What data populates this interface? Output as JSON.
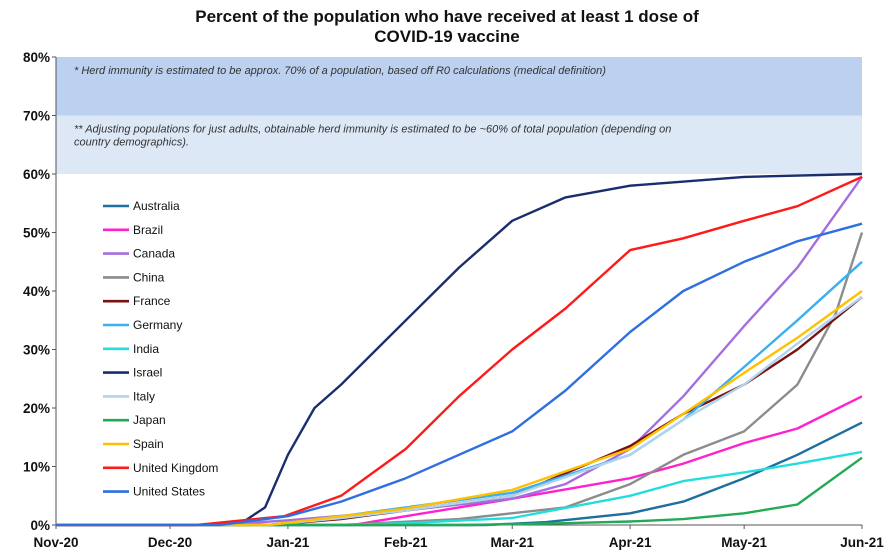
{
  "chart_data": {
    "type": "line",
    "title_lines": [
      "Percent of the population who have received at least 1 dose of",
      "COVID-19 vaccine"
    ],
    "x_ticks": [
      "Nov-20",
      "Dec-20",
      "Jan-21",
      "Feb-21",
      "Mar-21",
      "Apr-21",
      "May-21",
      "Jun-21"
    ],
    "y_ticks": [
      "0%",
      "10%",
      "20%",
      "30%",
      "40%",
      "50%",
      "60%",
      "70%",
      "80%"
    ],
    "ylim": [
      0,
      80
    ],
    "xlim": [
      "2020-11-01",
      "2021-06-01"
    ],
    "grid": false,
    "legend_position": "left",
    "bands": [
      {
        "from": 70,
        "to": 80,
        "color": "#bcd0ef",
        "note": "* Herd immunity is estimated to be approx. 70% of a population, based off R0 calculations (medical definition)"
      },
      {
        "from": 60,
        "to": 70,
        "color": "#dde8f7",
        "note": "** Adjusting populations for just adults, obtainable herd immunity is estimated to be ~60% of total population (depending on country demographics)."
      }
    ],
    "series": [
      {
        "name": "Australia",
        "color": "#1e6fa0",
        "points": [
          [
            "2021-02-22",
            0
          ],
          [
            "2021-03-10",
            0.5
          ],
          [
            "2021-04-01",
            2
          ],
          [
            "2021-04-15",
            4
          ],
          [
            "2021-05-01",
            8
          ],
          [
            "2021-05-15",
            12
          ],
          [
            "2021-06-01",
            17.5
          ]
        ]
      },
      {
        "name": "Brazil",
        "color": "#ff22cc",
        "points": [
          [
            "2021-01-18",
            0
          ],
          [
            "2021-02-01",
            1.5
          ],
          [
            "2021-03-01",
            4.5
          ],
          [
            "2021-04-01",
            8
          ],
          [
            "2021-04-15",
            10.5
          ],
          [
            "2021-05-01",
            14
          ],
          [
            "2021-05-15",
            16.5
          ],
          [
            "2021-06-01",
            22
          ]
        ]
      },
      {
        "name": "Canada",
        "color": "#a56ee0",
        "points": [
          [
            "2020-12-14",
            0
          ],
          [
            "2021-01-01",
            0.8
          ],
          [
            "2021-02-01",
            2.5
          ],
          [
            "2021-03-01",
            4.5
          ],
          [
            "2021-03-15",
            7
          ],
          [
            "2021-04-01",
            13
          ],
          [
            "2021-04-15",
            22
          ],
          [
            "2021-05-01",
            34
          ],
          [
            "2021-05-15",
            44
          ],
          [
            "2021-06-01",
            59.5
          ]
        ]
      },
      {
        "name": "China",
        "color": "#8c8c8c",
        "points": [
          [
            "2021-01-15",
            0
          ],
          [
            "2021-02-15",
            1
          ],
          [
            "2021-03-15",
            3
          ],
          [
            "2021-04-01",
            7
          ],
          [
            "2021-04-15",
            12
          ],
          [
            "2021-05-01",
            16
          ],
          [
            "2021-05-15",
            24
          ],
          [
            "2021-05-25",
            36
          ],
          [
            "2021-06-01",
            50
          ]
        ]
      },
      {
        "name": "France",
        "color": "#7a1010",
        "points": [
          [
            "2020-12-27",
            0
          ],
          [
            "2021-01-15",
            1
          ],
          [
            "2021-02-01",
            2.5
          ],
          [
            "2021-03-01",
            5
          ],
          [
            "2021-04-01",
            13.5
          ],
          [
            "2021-04-15",
            19
          ],
          [
            "2021-05-01",
            24
          ],
          [
            "2021-05-15",
            30
          ],
          [
            "2021-06-01",
            39
          ]
        ]
      },
      {
        "name": "Germany",
        "color": "#3ab0f0",
        "points": [
          [
            "2020-12-27",
            0
          ],
          [
            "2021-01-15",
            1.5
          ],
          [
            "2021-02-01",
            3
          ],
          [
            "2021-03-01",
            5.5
          ],
          [
            "2021-04-01",
            12
          ],
          [
            "2021-04-15",
            18
          ],
          [
            "2021-05-01",
            27
          ],
          [
            "2021-05-15",
            35
          ],
          [
            "2021-06-01",
            45
          ]
        ]
      },
      {
        "name": "India",
        "color": "#22dddd",
        "points": [
          [
            "2021-01-16",
            0
          ],
          [
            "2021-02-01",
            0.3
          ],
          [
            "2021-03-01",
            1.2
          ],
          [
            "2021-04-01",
            5
          ],
          [
            "2021-04-15",
            7.5
          ],
          [
            "2021-05-01",
            9
          ],
          [
            "2021-05-15",
            10.5
          ],
          [
            "2021-06-01",
            12.5
          ]
        ]
      },
      {
        "name": "Israel",
        "color": "#1a2e6e",
        "points": [
          [
            "2020-12-19",
            0
          ],
          [
            "2020-12-26",
            3
          ],
          [
            "2021-01-01",
            12
          ],
          [
            "2021-01-08",
            20
          ],
          [
            "2021-01-15",
            24
          ],
          [
            "2021-02-01",
            35
          ],
          [
            "2021-02-15",
            44
          ],
          [
            "2021-03-01",
            52
          ],
          [
            "2021-03-15",
            56
          ],
          [
            "2021-04-01",
            58
          ],
          [
            "2021-05-01",
            59.5
          ],
          [
            "2021-06-01",
            60
          ]
        ]
      },
      {
        "name": "Italy",
        "color": "#b0d4ee",
        "points": [
          [
            "2020-12-27",
            0
          ],
          [
            "2021-01-15",
            1.2
          ],
          [
            "2021-02-01",
            2.5
          ],
          [
            "2021-03-01",
            5
          ],
          [
            "2021-04-01",
            12
          ],
          [
            "2021-04-15",
            18
          ],
          [
            "2021-05-01",
            24
          ],
          [
            "2021-05-15",
            31
          ],
          [
            "2021-06-01",
            39
          ]
        ]
      },
      {
        "name": "Japan",
        "color": "#22aa55",
        "points": [
          [
            "2021-02-17",
            0
          ],
          [
            "2021-03-15",
            0.3
          ],
          [
            "2021-04-01",
            0.6
          ],
          [
            "2021-04-15",
            1
          ],
          [
            "2021-05-01",
            2
          ],
          [
            "2021-05-15",
            3.5
          ],
          [
            "2021-06-01",
            11.5
          ]
        ]
      },
      {
        "name": "Spain",
        "color": "#ffc000",
        "points": [
          [
            "2020-12-27",
            0
          ],
          [
            "2021-01-15",
            1.5
          ],
          [
            "2021-02-01",
            2.8
          ],
          [
            "2021-03-01",
            6
          ],
          [
            "2021-04-01",
            13
          ],
          [
            "2021-04-15",
            19
          ],
          [
            "2021-05-01",
            26
          ],
          [
            "2021-05-15",
            32
          ],
          [
            "2021-06-01",
            40
          ]
        ]
      },
      {
        "name": "United Kingdom",
        "color": "#ff1a1a",
        "points": [
          [
            "2020-12-08",
            0
          ],
          [
            "2020-12-31",
            1.5
          ],
          [
            "2021-01-15",
            5
          ],
          [
            "2021-02-01",
            13
          ],
          [
            "2021-02-15",
            22
          ],
          [
            "2021-03-01",
            30
          ],
          [
            "2021-03-15",
            37
          ],
          [
            "2021-04-01",
            47
          ],
          [
            "2021-04-15",
            49
          ],
          [
            "2021-05-01",
            52
          ],
          [
            "2021-05-15",
            54.5
          ],
          [
            "2021-06-01",
            59.5
          ]
        ]
      },
      {
        "name": "United States",
        "color": "#2f6fe0",
        "points": [
          [
            "2020-12-14",
            0
          ],
          [
            "2021-01-01",
            1.5
          ],
          [
            "2021-01-15",
            4
          ],
          [
            "2021-02-01",
            8
          ],
          [
            "2021-03-01",
            16
          ],
          [
            "2021-03-15",
            23
          ],
          [
            "2021-04-01",
            33
          ],
          [
            "2021-04-15",
            40
          ],
          [
            "2021-05-01",
            45
          ],
          [
            "2021-05-15",
            48.5
          ],
          [
            "2021-06-01",
            51.5
          ]
        ]
      }
    ]
  }
}
